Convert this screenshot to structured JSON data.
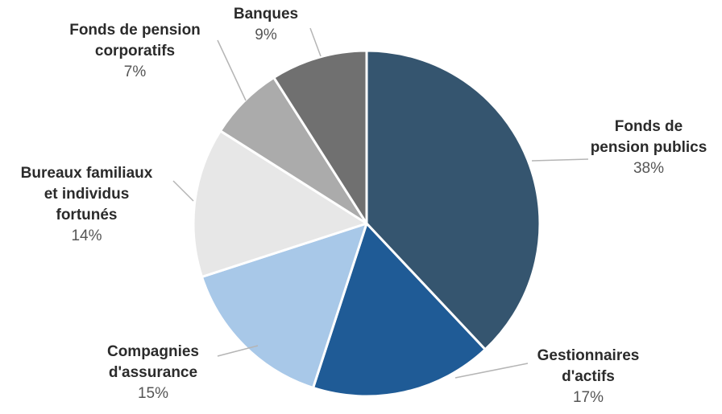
{
  "chart_data": {
    "type": "pie",
    "slices": [
      {
        "name_lines": [
          "Fonds de",
          "pension publics"
        ],
        "value": 38,
        "label": "38%",
        "color": "#35556f"
      },
      {
        "name_lines": [
          "Gestionnaires",
          "d'actifs"
        ],
        "value": 17,
        "label": "17%",
        "color": "#1f5b96"
      },
      {
        "name_lines": [
          "Compagnies",
          "d'assurance"
        ],
        "value": 15,
        "label": "15%",
        "color": "#a8c8e8"
      },
      {
        "name_lines": [
          "Bureaux familiaux",
          "et individus",
          "fortunés"
        ],
        "value": 14,
        "label": "14%",
        "color": "#e7e7e7"
      },
      {
        "name_lines": [
          "Fonds de pension",
          "corporatifs"
        ],
        "value": 7,
        "label": "7%",
        "color": "#ababab"
      },
      {
        "name_lines": [
          "Banques"
        ],
        "value": 9,
        "label": "9%",
        "color": "#707070"
      }
    ]
  }
}
